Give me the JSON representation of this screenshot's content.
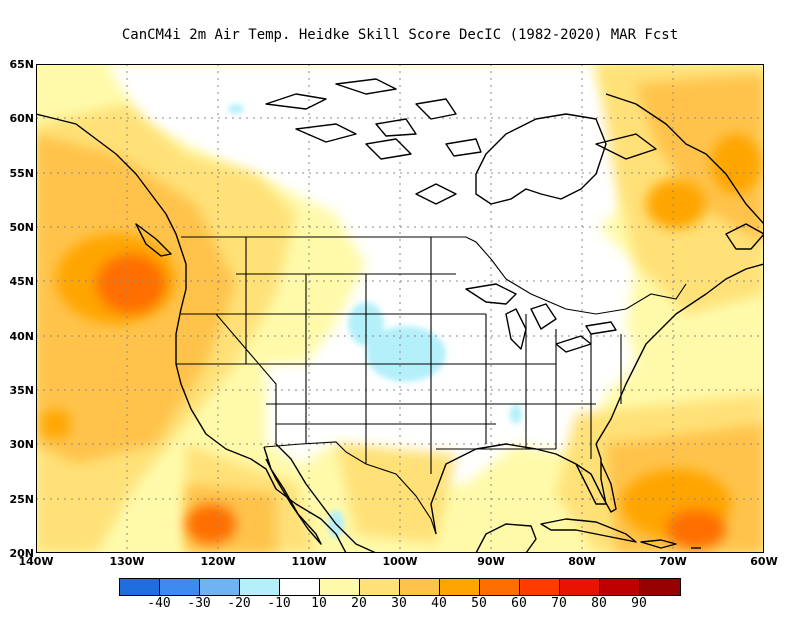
{
  "title": "CanCM4i  2m Air Temp. Heidke Skill Score DecIC (1982-2020) MAR Fcst",
  "map": {
    "lat_labels": [
      "65N",
      "60N",
      "55N",
      "50N",
      "45N",
      "40N",
      "35N",
      "30N",
      "25N",
      "20N"
    ],
    "lon_labels": [
      "140W",
      "130W",
      "120W",
      "110W",
      "100W",
      "90W",
      "80W",
      "70W",
      "60W"
    ],
    "lat_range": [
      20,
      65
    ],
    "lon_range": [
      -140,
      -60
    ],
    "grid": true
  },
  "colorbar": {
    "colors": [
      "#1e6ee0",
      "#3c8cf0",
      "#6eb4f5",
      "#b4f0fa",
      "#ffffff",
      "#fffaaa",
      "#ffe178",
      "#ffc34b",
      "#ffa500",
      "#ff6e00",
      "#ff3c00",
      "#e61400",
      "#be0000",
      "#960000"
    ],
    "labels": [
      "-40",
      "-30",
      "-20",
      "-10",
      "10",
      "20",
      "30",
      "40",
      "50",
      "60",
      "70",
      "80",
      "90"
    ]
  }
}
